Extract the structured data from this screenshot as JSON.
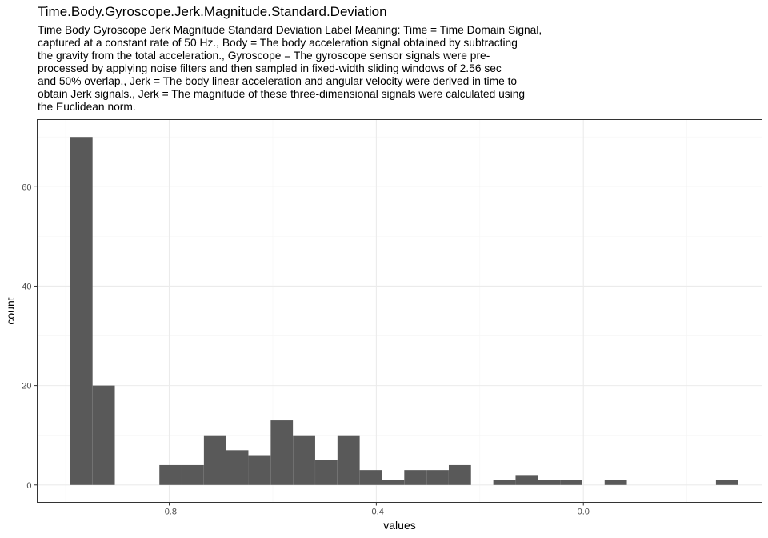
{
  "chart_data": {
    "type": "bar",
    "title": "Time.Body.Gyroscope.Jerk.Magnitude.Standard.Deviation",
    "subtitle_lines": [
      "Time Body Gyroscope Jerk Magnitude Standard Deviation Label Meaning: Time = Time Domain Signal,",
      "captured at a constant rate of 50 Hz., Body = The body acceleration signal obtained by subtracting",
      "the gravity from the total acceleration., Gyroscope = The gyroscope sensor signals were pre-",
      "processed by applying noise filters and then sampled in fixed-width sliding windows of 2.56 sec",
      "and 50% overlap., Jerk = The body linear acceleration and angular velocity were derived in time to",
      "obtain Jerk signals., Jerk = The magnitude of these three-dimensional signals were calculated using",
      "the Euclidean norm."
    ],
    "xlabel": "values",
    "ylabel": "count",
    "xlim": [
      -1.055,
      0.345
    ],
    "ylim": [
      -3.5,
      73.5
    ],
    "xticks": [
      -0.8,
      -0.4,
      0.0
    ],
    "xtick_labels": [
      "-0.8",
      "-0.4",
      "0.0"
    ],
    "yticks": [
      0,
      20,
      40,
      60
    ],
    "ytick_labels": [
      "0",
      "20",
      "40",
      "60"
    ],
    "grid": true,
    "bin_width": 0.0429,
    "bins": [
      {
        "x0": -0.991,
        "count": 70
      },
      {
        "x0": -0.948,
        "count": 20
      },
      {
        "x0": -0.905,
        "count": 0
      },
      {
        "x0": -0.862,
        "count": 0
      },
      {
        "x0": -0.819,
        "count": 4
      },
      {
        "x0": -0.776,
        "count": 4
      },
      {
        "x0": -0.733,
        "count": 10
      },
      {
        "x0": -0.69,
        "count": 7
      },
      {
        "x0": -0.647,
        "count": 6
      },
      {
        "x0": -0.604,
        "count": 13
      },
      {
        "x0": -0.561,
        "count": 10
      },
      {
        "x0": -0.518,
        "count": 5
      },
      {
        "x0": -0.475,
        "count": 10
      },
      {
        "x0": -0.432,
        "count": 3
      },
      {
        "x0": -0.389,
        "count": 1
      },
      {
        "x0": -0.346,
        "count": 3
      },
      {
        "x0": -0.303,
        "count": 3
      },
      {
        "x0": -0.26,
        "count": 4
      },
      {
        "x0": -0.217,
        "count": 0
      },
      {
        "x0": -0.174,
        "count": 1
      },
      {
        "x0": -0.131,
        "count": 2
      },
      {
        "x0": -0.088,
        "count": 1
      },
      {
        "x0": -0.045,
        "count": 1
      },
      {
        "x0": -0.002,
        "count": 0
      },
      {
        "x0": 0.041,
        "count": 1
      },
      {
        "x0": 0.084,
        "count": 0
      },
      {
        "x0": 0.127,
        "count": 0
      },
      {
        "x0": 0.17,
        "count": 0
      },
      {
        "x0": 0.213,
        "count": 0
      },
      {
        "x0": 0.256,
        "count": 1
      }
    ],
    "colors": {
      "bar": "#595959",
      "panel_border": "#333333",
      "grid_major": "#ebebeb",
      "grid_minor": "#f5f5f5"
    }
  }
}
